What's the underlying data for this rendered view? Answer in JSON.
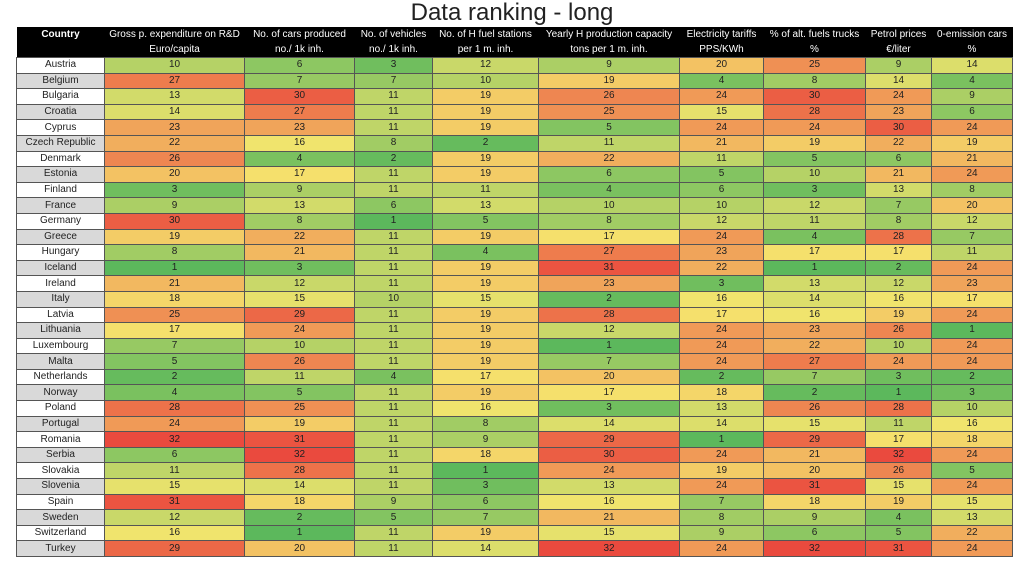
{
  "title": "Data ranking - long",
  "chart_data": {
    "type": "table",
    "title": "Data ranking - long",
    "color_scale": {
      "low": "#5cb85c",
      "mid": "#f5e56e",
      "high": "#ea4a3e",
      "min": 1,
      "max": 32
    },
    "header_row1": [
      "Country",
      "Gross p. expenditure on R&D",
      "No. of  cars produced",
      "No. of vehicles",
      "No. of H fuel stations",
      "Yearly H production capacity",
      "Electricity tariffs",
      "% of alt. fuels trucks",
      "Petrol prices",
      "0-emission cars"
    ],
    "header_row2": [
      "",
      "Euro/capita",
      "no./ 1k inh.",
      "no./ 1k inh.",
      "per 1 m. inh.",
      "tons per 1 m. inh.",
      "PPS/KWh",
      "%",
      "€/liter",
      "%"
    ],
    "rows": [
      {
        "country": "Austria",
        "values": [
          10,
          6,
          3,
          12,
          9,
          20,
          25,
          9,
          14
        ]
      },
      {
        "country": "Belgium",
        "values": [
          27,
          7,
          7,
          10,
          19,
          4,
          8,
          14,
          4
        ]
      },
      {
        "country": "Bulgaria",
        "values": [
          13,
          30,
          11,
          19,
          26,
          24,
          30,
          24,
          9
        ]
      },
      {
        "country": "Croatia",
        "values": [
          14,
          27,
          11,
          19,
          25,
          15,
          28,
          23,
          6
        ]
      },
      {
        "country": "Cyprus",
        "values": [
          23,
          23,
          11,
          19,
          5,
          24,
          24,
          30,
          24
        ]
      },
      {
        "country": "Czech Republic",
        "values": [
          22,
          16,
          8,
          2,
          11,
          21,
          19,
          22,
          19
        ]
      },
      {
        "country": "Denmark",
        "values": [
          26,
          4,
          2,
          19,
          22,
          11,
          5,
          6,
          21
        ]
      },
      {
        "country": "Estonia",
        "values": [
          20,
          17,
          11,
          19,
          6,
          5,
          10,
          21,
          24
        ]
      },
      {
        "country": "Finland",
        "values": [
          3,
          9,
          11,
          11,
          4,
          6,
          3,
          13,
          8
        ]
      },
      {
        "country": "France",
        "values": [
          9,
          13,
          6,
          13,
          10,
          10,
          12,
          7,
          20
        ]
      },
      {
        "country": "Germany",
        "values": [
          30,
          8,
          1,
          5,
          8,
          12,
          11,
          8,
          12
        ]
      },
      {
        "country": "Greece",
        "values": [
          19,
          22,
          11,
          19,
          17,
          24,
          4,
          28,
          7
        ]
      },
      {
        "country": "Hungary",
        "values": [
          8,
          21,
          11,
          4,
          27,
          23,
          17,
          17,
          11
        ]
      },
      {
        "country": "Iceland",
        "values": [
          1,
          3,
          11,
          19,
          31,
          22,
          1,
          2,
          24
        ]
      },
      {
        "country": "Ireland",
        "values": [
          21,
          12,
          11,
          19,
          23,
          3,
          13,
          12,
          23
        ]
      },
      {
        "country": "Italy",
        "values": [
          18,
          15,
          10,
          15,
          2,
          16,
          14,
          16,
          17
        ]
      },
      {
        "country": "Latvia",
        "values": [
          25,
          29,
          11,
          19,
          28,
          17,
          16,
          19,
          24
        ]
      },
      {
        "country": "Lithuania",
        "values": [
          17,
          24,
          11,
          19,
          12,
          24,
          23,
          26,
          1
        ]
      },
      {
        "country": "Luxembourg",
        "values": [
          7,
          10,
          11,
          19,
          1,
          24,
          22,
          10,
          24
        ]
      },
      {
        "country": "Malta",
        "values": [
          5,
          26,
          11,
          19,
          7,
          24,
          27,
          24,
          24
        ]
      },
      {
        "country": "Netherlands",
        "values": [
          2,
          11,
          4,
          17,
          20,
          2,
          7,
          3,
          2
        ]
      },
      {
        "country": "Norway",
        "values": [
          4,
          5,
          11,
          19,
          17,
          18,
          2,
          1,
          3
        ]
      },
      {
        "country": "Poland",
        "values": [
          28,
          25,
          11,
          16,
          3,
          13,
          26,
          28,
          10
        ]
      },
      {
        "country": "Portugal",
        "values": [
          24,
          19,
          11,
          8,
          14,
          14,
          15,
          11,
          16
        ]
      },
      {
        "country": "Romania",
        "values": [
          32,
          31,
          11,
          9,
          29,
          1,
          29,
          17,
          18
        ]
      },
      {
        "country": "Serbia",
        "values": [
          6,
          32,
          11,
          18,
          30,
          24,
          21,
          32,
          24
        ]
      },
      {
        "country": "Slovakia",
        "values": [
          11,
          28,
          11,
          1,
          24,
          19,
          20,
          26,
          5
        ]
      },
      {
        "country": "Slovenia",
        "values": [
          15,
          14,
          11,
          3,
          13,
          24,
          31,
          15,
          24
        ]
      },
      {
        "country": "Spain",
        "values": [
          31,
          18,
          9,
          6,
          16,
          7,
          18,
          19,
          15
        ]
      },
      {
        "country": "Sweden",
        "values": [
          12,
          2,
          5,
          7,
          21,
          8,
          9,
          4,
          13
        ]
      },
      {
        "country": "Switzerland",
        "values": [
          16,
          1,
          11,
          19,
          15,
          9,
          6,
          5,
          22
        ]
      },
      {
        "country": "Turkey",
        "values": [
          29,
          20,
          11,
          14,
          32,
          24,
          32,
          31,
          24
        ]
      }
    ]
  }
}
